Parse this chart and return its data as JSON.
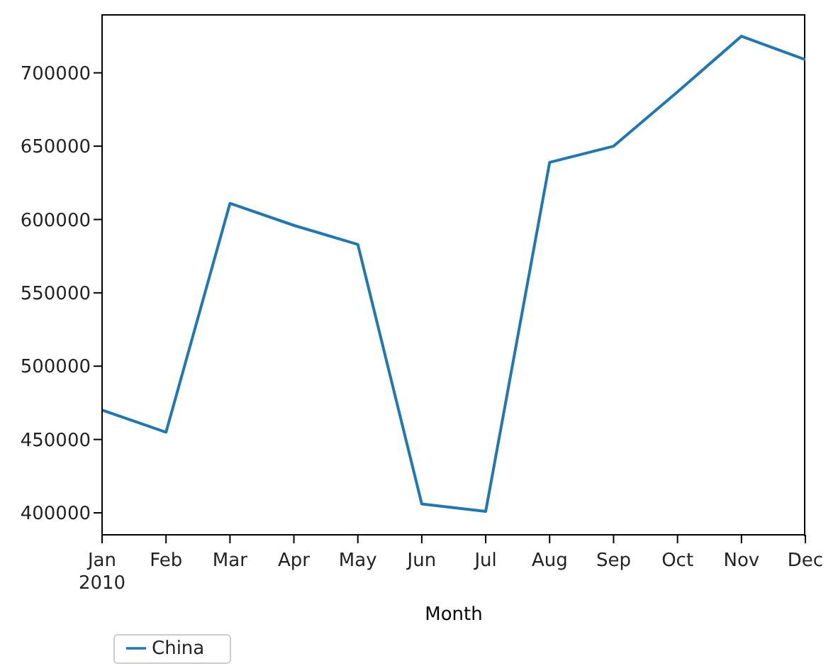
{
  "chart_data": {
    "type": "line",
    "xlabel": "Month",
    "categories": [
      "Jan\n2010",
      "Feb",
      "Mar",
      "Apr",
      "May",
      "Jun",
      "Jul",
      "Aug",
      "Sep",
      "Oct",
      "Nov",
      "Dec"
    ],
    "series": [
      {
        "name": "China",
        "color": "#1f77b4",
        "values": [
          470000,
          455000,
          611000,
          596000,
          583000,
          406000,
          401000,
          639000,
          650000,
          687000,
          725000,
          709000
        ]
      }
    ],
    "ylim": [
      385000,
      740000
    ],
    "yticks": [
      400000,
      450000,
      500000,
      550000,
      600000,
      650000,
      700000
    ],
    "grid": false,
    "legend": "bottom left",
    "marker": "none",
    "line_style": "solid"
  }
}
